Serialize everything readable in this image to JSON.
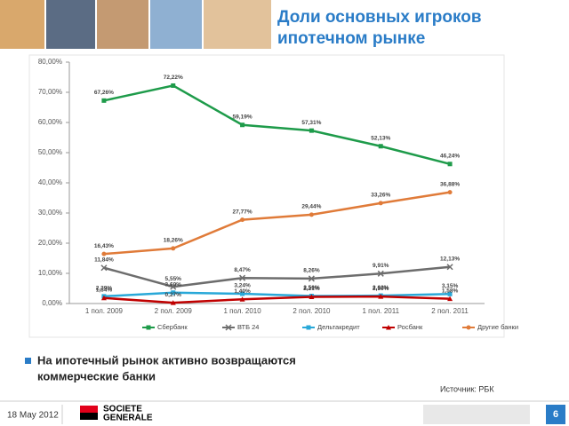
{
  "slide": {
    "title_lines": [
      "Доли основных игроков",
      "ипотечном рынке"
    ],
    "bullet_lines": [
      "На ипотечный рынок активно возвращаются",
      "коммерческие банки"
    ],
    "source": "Источник: РБК",
    "date": "18 May 2012",
    "logo_lines": [
      "SOCIETE",
      "GENERALE"
    ],
    "page_number": "6"
  },
  "chart_data": {
    "type": "line",
    "categories": [
      "1 пол. 2009",
      "2 пол. 2009",
      "1 пол. 2010",
      "2 пол. 2010",
      "1 пол. 2011",
      "2 пол. 2011"
    ],
    "ylim": [
      0,
      80
    ],
    "yticks": [
      {
        "value": 0,
        "label": "0,00%"
      },
      {
        "value": 10,
        "label": "10,00%"
      },
      {
        "value": 20,
        "label": "20,00%"
      },
      {
        "value": 30,
        "label": "30,00%"
      },
      {
        "value": 40,
        "label": "40,00%"
      },
      {
        "value": 50,
        "label": "50,00%"
      },
      {
        "value": 60,
        "label": "60,00%"
      },
      {
        "value": 70,
        "label": "70,00%"
      },
      {
        "value": 80,
        "label": "80,00%"
      }
    ],
    "series": [
      {
        "name": "Сбербанк",
        "color": "#1e9b4a",
        "marker": "square",
        "values": [
          67.26,
          72.22,
          59.19,
          57.31,
          52.13,
          46.24
        ],
        "value_labels": [
          "67,26%",
          "72,22%",
          "59,19%",
          "57,31%",
          "52,13%",
          "46,24%"
        ]
      },
      {
        "name": "ВТБ 24",
        "color": "#6d6d6d",
        "marker": "cross",
        "values": [
          11.84,
          5.55,
          8.47,
          8.26,
          9.91,
          12.13
        ],
        "value_labels": [
          "11,84%",
          "5,55%",
          "8,47%",
          "8,26%",
          "9,91%",
          "12,13%"
        ]
      },
      {
        "name": "Дельтакредит",
        "color": "#29a8d8",
        "marker": "square",
        "values": [
          2.39,
          3.6,
          3.24,
          2.5,
          2.62,
          3.15
        ],
        "value_labels": [
          "2,39%",
          "3,60%",
          "3,24%",
          "2,50%",
          "2,62%",
          "3,15%"
        ]
      },
      {
        "name": "Росбанк",
        "color": "#c00000",
        "marker": "triangle",
        "values": [
          1.84,
          0.27,
          1.4,
          2.21,
          2.3,
          1.58
        ],
        "value_labels": [
          "1,84%",
          "0,27%",
          "1,40%",
          "2,21%",
          "2,30%",
          "1,58%"
        ]
      },
      {
        "name": "Другие банки",
        "color": "#e07b39",
        "marker": "circle",
        "values": [
          16.43,
          18.26,
          27.77,
          29.44,
          33.26,
          36.88
        ],
        "value_labels": [
          "16,43%",
          "18,26%",
          "27,77%",
          "29,44%",
          "33,26%",
          "36,88%"
        ]
      }
    ]
  }
}
